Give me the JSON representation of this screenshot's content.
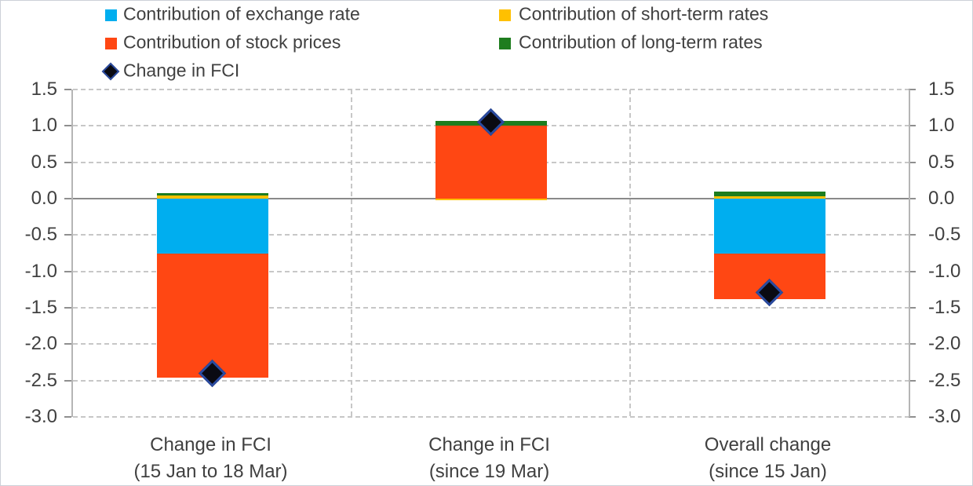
{
  "chart_data": {
    "type": "bar",
    "stacked": true,
    "title": "",
    "legend_position": "top-left, two columns",
    "grid": "horizontal dashed gridlines, vertical dashed category separators, solid zero line",
    "axes": "y-axis labeled on both left and right sides",
    "ylim": [
      -3.0,
      1.5
    ],
    "ytick_step": 0.5,
    "yticks": [
      1.5,
      1.0,
      0.5,
      0.0,
      -0.5,
      -1.0,
      -1.5,
      -2.0,
      -2.5,
      -3.0
    ],
    "categories": [
      {
        "line1": "Change in FCI",
        "line2": "(15 Jan to 18 Mar)"
      },
      {
        "line1": "Change in FCI",
        "line2": "(since 19 Mar)"
      },
      {
        "line1": "Overall change",
        "line2": "(since 15 Jan)"
      }
    ],
    "series": [
      {
        "name": "Contribution of exchange rate",
        "color": "#00AEEF",
        "values": [
          -0.76,
          0.0,
          -0.76
        ]
      },
      {
        "name": "Contribution of stock prices",
        "color": "#FF4713",
        "values": [
          -1.7,
          1.0,
          -0.62
        ]
      },
      {
        "name": "Contribution of short-term rates",
        "color": "#FFC000",
        "values": [
          0.04,
          -0.02,
          0.03
        ]
      },
      {
        "name": "Contribution of long-term rates",
        "color": "#1E7D1E",
        "values": [
          0.04,
          0.07,
          0.07
        ]
      }
    ],
    "marker_series": {
      "name": "Change in FCI",
      "marker": "diamond",
      "fill": "#0A0A12",
      "border": "#2B4BA0",
      "values": [
        -2.4,
        1.05,
        -1.29
      ]
    },
    "legend": [
      {
        "label": "Contribution of exchange rate",
        "marker": "square",
        "color": "#00AEEF",
        "col": 1,
        "row": 1
      },
      {
        "label": "Contribution of stock prices",
        "marker": "square",
        "color": "#FF4713",
        "col": 1,
        "row": 2
      },
      {
        "label": "Change in FCI",
        "marker": "diamond",
        "color": "#0A0A12",
        "col": 1,
        "row": 3
      },
      {
        "label": "Contribution of short-term rates",
        "marker": "square",
        "color": "#FFC000",
        "col": 2,
        "row": 1
      },
      {
        "label": "Contribution of long-term rates",
        "marker": "square",
        "color": "#1E7D1E",
        "col": 2,
        "row": 2
      }
    ],
    "colors": {
      "text": "#404040",
      "gridline": "#c7c7c7",
      "zero_line": "#8a8a8a",
      "axis_line": "#b5b5b5"
    }
  }
}
